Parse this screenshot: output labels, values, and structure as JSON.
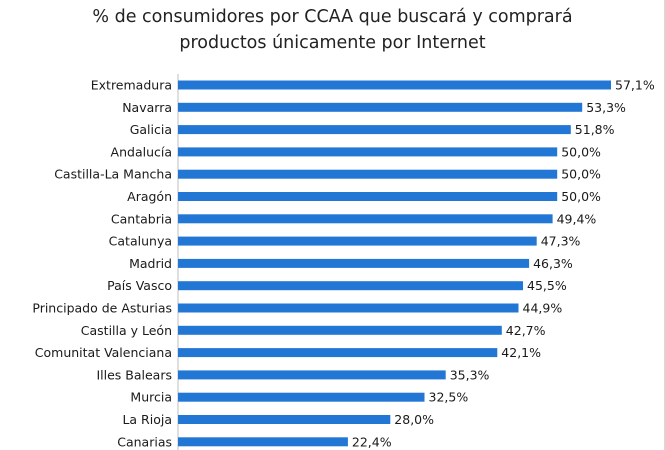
{
  "chart_data": {
    "type": "bar",
    "orientation": "horizontal",
    "title_lines": [
      "% de consumidores por CCAA que buscará y comprará",
      "productos únicamente por Internet"
    ],
    "categories": [
      "Extremadura",
      "Navarra",
      "Galicia",
      "Andalucía",
      "Castilla-La Mancha",
      "Aragón",
      "Cantabria",
      "Catalunya",
      "Madrid",
      "País Vasco",
      "Principado de Asturias",
      "Castilla y León",
      "Comunitat Valenciana",
      "Illes Balears",
      "Murcia",
      "La Rioja",
      "Canarias"
    ],
    "values": [
      57.1,
      53.3,
      51.8,
      50.0,
      50.0,
      50.0,
      49.4,
      47.3,
      46.3,
      45.5,
      44.9,
      42.7,
      42.1,
      35.3,
      32.5,
      28.0,
      22.4
    ],
    "value_labels": [
      "57,1%",
      "53,3%",
      "51,8%",
      "50,0%",
      "50,0%",
      "50,0%",
      "49,4%",
      "47,3%",
      "46,3%",
      "45,5%",
      "44,9%",
      "42,7%",
      "42,1%",
      "35,3%",
      "32,5%",
      "28,0%",
      "22,4%"
    ],
    "xlim": [
      0,
      57.1
    ],
    "grid": false,
    "legend": "none",
    "colors": {
      "bar": "#2377d4",
      "axis": "#bfbfbf"
    }
  }
}
